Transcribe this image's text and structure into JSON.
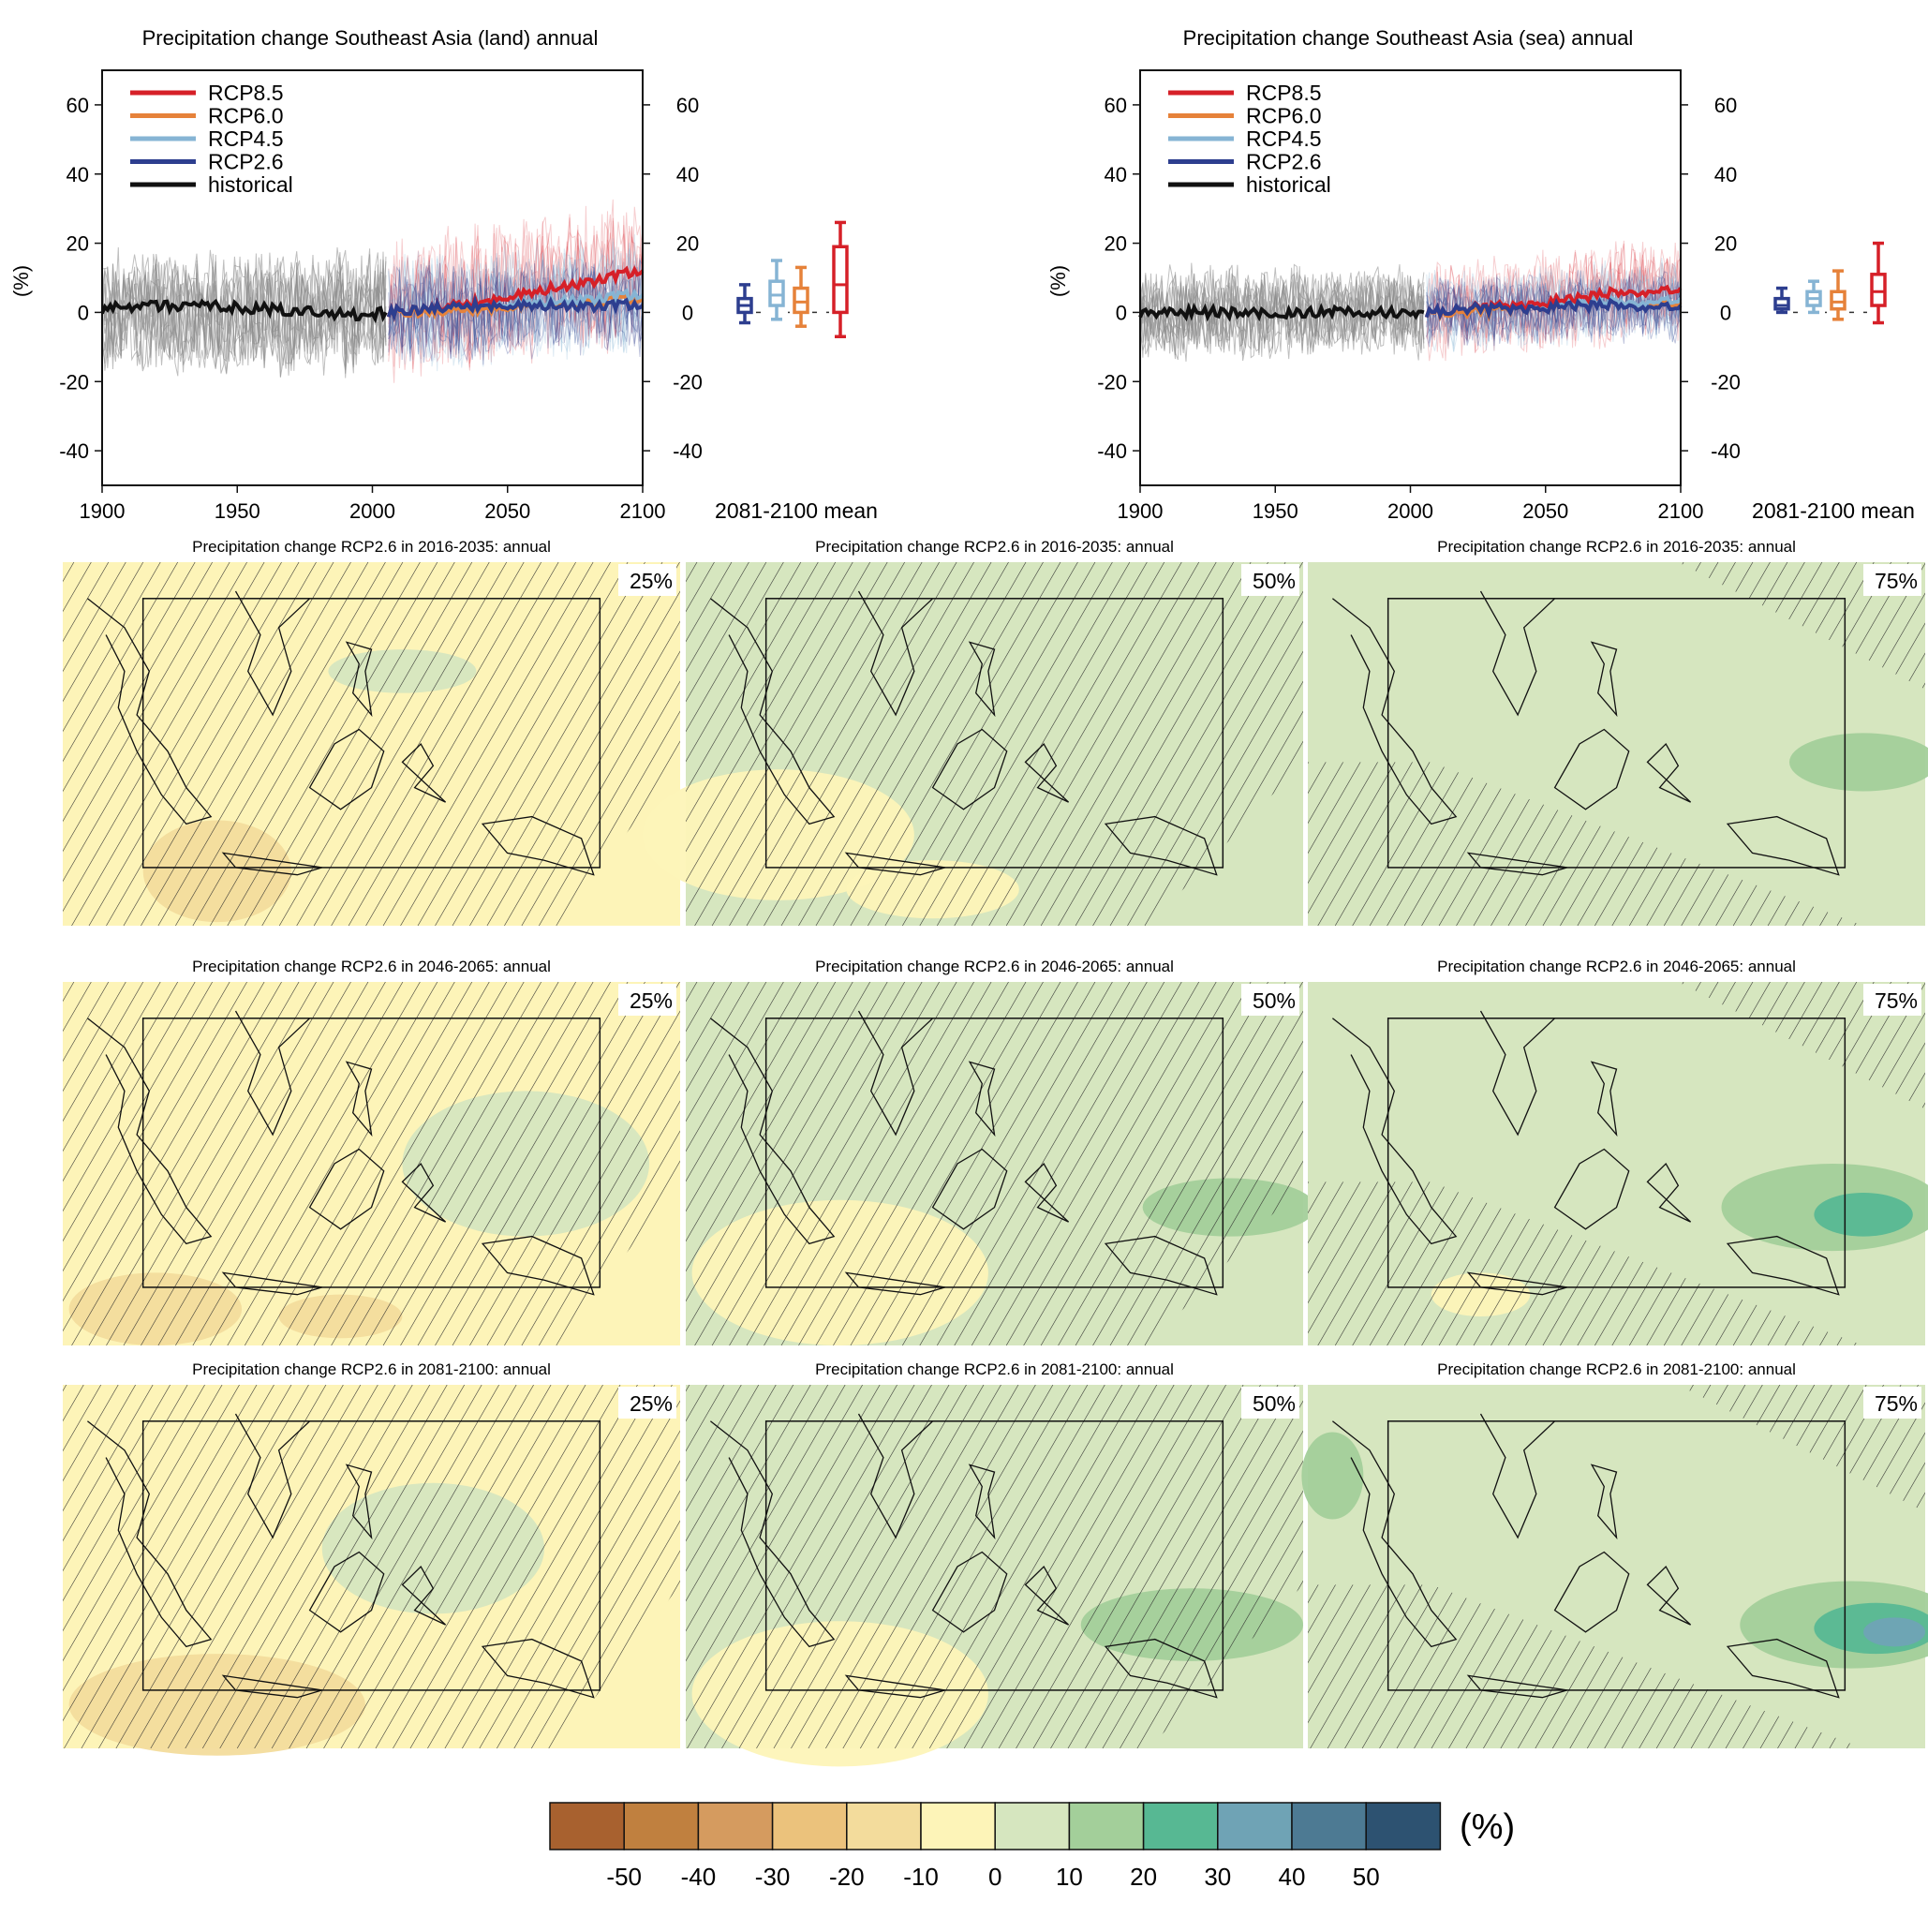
{
  "colors": {
    "rcp85": "#d62028",
    "rcp60": "#e6823a",
    "rcp45": "#86b4d4",
    "rcp26": "#2d3e8f",
    "historical": "#111111",
    "ensemble_gray": "#8a8a8a"
  },
  "chart_data": [
    {
      "type": "line",
      "title": "Precipitation change Southeast Asia (land) annual",
      "xlabel": "",
      "ylabel": "(%)",
      "xlim": [
        1900,
        2100
      ],
      "ylim": [
        -50,
        70
      ],
      "x_ticks": [
        1900,
        1950,
        2000,
        2050,
        2100
      ],
      "y_ticks": [
        -40,
        -20,
        0,
        20,
        40,
        60
      ],
      "legend": {
        "position": "top-left",
        "entries": [
          "RCP8.5",
          "RCP6.0",
          "RCP4.5",
          "RCP2.6",
          "historical"
        ]
      },
      "series": [
        {
          "name": "historical",
          "x": [
            1900,
            1920,
            1940,
            1960,
            1980,
            1995,
            2005
          ],
          "y": [
            1,
            2,
            2,
            1,
            0,
            -1,
            0
          ]
        },
        {
          "name": "RCP2.6",
          "x": [
            2006,
            2020,
            2040,
            2060,
            2080,
            2100
          ],
          "y": [
            0,
            1,
            2,
            2,
            2,
            2
          ]
        },
        {
          "name": "RCP4.5",
          "x": [
            2006,
            2020,
            2040,
            2060,
            2080,
            2100
          ],
          "y": [
            0,
            1,
            2,
            3,
            4,
            5
          ]
        },
        {
          "name": "RCP6.0",
          "x": [
            2006,
            2020,
            2040,
            2060,
            2080,
            2100
          ],
          "y": [
            0,
            0,
            1,
            2,
            3,
            4
          ]
        },
        {
          "name": "RCP8.5",
          "x": [
            2006,
            2020,
            2040,
            2060,
            2080,
            2100
          ],
          "y": [
            0,
            1,
            3,
            6,
            9,
            12
          ]
        }
      ],
      "boxplots": {
        "label": "2081-2100 mean",
        "items": [
          {
            "name": "RCP2.6",
            "min": -3,
            "q1": 0,
            "median": 2,
            "q3": 4,
            "max": 8
          },
          {
            "name": "RCP4.5",
            "min": -2,
            "q1": 2,
            "median": 5,
            "q3": 9,
            "max": 15
          },
          {
            "name": "RCP6.0",
            "min": -4,
            "q1": 0,
            "median": 3,
            "q3": 7,
            "max": 13
          },
          {
            "name": "RCP8.5",
            "min": -7,
            "q1": 0,
            "median": 8,
            "q3": 19,
            "max": 26
          }
        ]
      }
    },
    {
      "type": "line",
      "title": "Precipitation change Southeast Asia (sea) annual",
      "xlabel": "",
      "ylabel": "(%)",
      "xlim": [
        1900,
        2100
      ],
      "ylim": [
        -50,
        70
      ],
      "x_ticks": [
        1900,
        1950,
        2000,
        2050,
        2100
      ],
      "y_ticks": [
        -40,
        -20,
        0,
        20,
        40,
        60
      ],
      "legend": {
        "position": "top-left",
        "entries": [
          "RCP8.5",
          "RCP6.0",
          "RCP4.5",
          "RCP2.6",
          "historical"
        ]
      },
      "series": [
        {
          "name": "historical",
          "x": [
            1900,
            1920,
            1940,
            1960,
            1980,
            1995,
            2005
          ],
          "y": [
            0,
            0,
            0,
            0,
            0,
            0,
            0
          ]
        },
        {
          "name": "RCP2.6",
          "x": [
            2006,
            2020,
            2040,
            2060,
            2080,
            2100
          ],
          "y": [
            0,
            1,
            1,
            2,
            2,
            2
          ]
        },
        {
          "name": "RCP4.5",
          "x": [
            2006,
            2020,
            2040,
            2060,
            2080,
            2100
          ],
          "y": [
            0,
            1,
            2,
            3,
            3,
            4
          ]
        },
        {
          "name": "RCP6.0",
          "x": [
            2006,
            2020,
            2040,
            2060,
            2080,
            2100
          ],
          "y": [
            0,
            0,
            1,
            2,
            3,
            3
          ]
        },
        {
          "name": "RCP8.5",
          "x": [
            2006,
            2020,
            2040,
            2060,
            2080,
            2100
          ],
          "y": [
            0,
            1,
            2,
            4,
            6,
            7
          ]
        }
      ],
      "boxplots": {
        "label": "2081-2100 mean",
        "items": [
          {
            "name": "RCP2.6",
            "min": 0,
            "q1": 1,
            "median": 2,
            "q3": 4,
            "max": 7
          },
          {
            "name": "RCP4.5",
            "min": 0,
            "q1": 2,
            "median": 4,
            "q3": 6,
            "max": 9
          },
          {
            "name": "RCP6.0",
            "min": -2,
            "q1": 1,
            "median": 3,
            "q3": 6,
            "max": 12
          },
          {
            "name": "RCP8.5",
            "min": -3,
            "q1": 2,
            "median": 6,
            "q3": 11,
            "max": 20
          }
        ]
      }
    },
    {
      "type": "heatmap",
      "title": "Precipitation change RCP2.6 in 2016-2035: annual / 2046-2065 / 2081-2100 (25%, 50%, 75%)",
      "maps": [
        {
          "title": "Precipitation change RCP2.6 in 2016-2035: annual",
          "percentile": "25%"
        },
        {
          "title": "Precipitation change RCP2.6 in 2016-2035: annual",
          "percentile": "50%"
        },
        {
          "title": "Precipitation change RCP2.6 in 2016-2035: annual",
          "percentile": "75%"
        },
        {
          "title": "Precipitation change RCP2.6 in 2046-2065: annual",
          "percentile": "25%"
        },
        {
          "title": "Precipitation change RCP2.6 in 2046-2065: annual",
          "percentile": "50%"
        },
        {
          "title": "Precipitation change RCP2.6 in 2046-2065: annual",
          "percentile": "75%"
        },
        {
          "title": "Precipitation change RCP2.6 in 2081-2100: annual",
          "percentile": "25%"
        },
        {
          "title": "Precipitation change RCP2.6 in 2081-2100: annual",
          "percentile": "50%"
        },
        {
          "title": "Precipitation change RCP2.6 in 2081-2100: annual",
          "percentile": "75%"
        }
      ],
      "colorbar": {
        "unit": "(%)",
        "ticks": [
          "-50",
          "-40",
          "-30",
          "-20",
          "-10",
          "0",
          "10",
          "20",
          "30",
          "40",
          "50"
        ],
        "colors": [
          "#a8612f",
          "#c0803f",
          "#d59b5f",
          "#ebc27c",
          "#f3dc9c",
          "#fdf4b8",
          "#d6e6bf",
          "#a3cf9a",
          "#57b893",
          "#6fa3b5",
          "#4d7a93",
          "#2d5271"
        ]
      }
    }
  ]
}
